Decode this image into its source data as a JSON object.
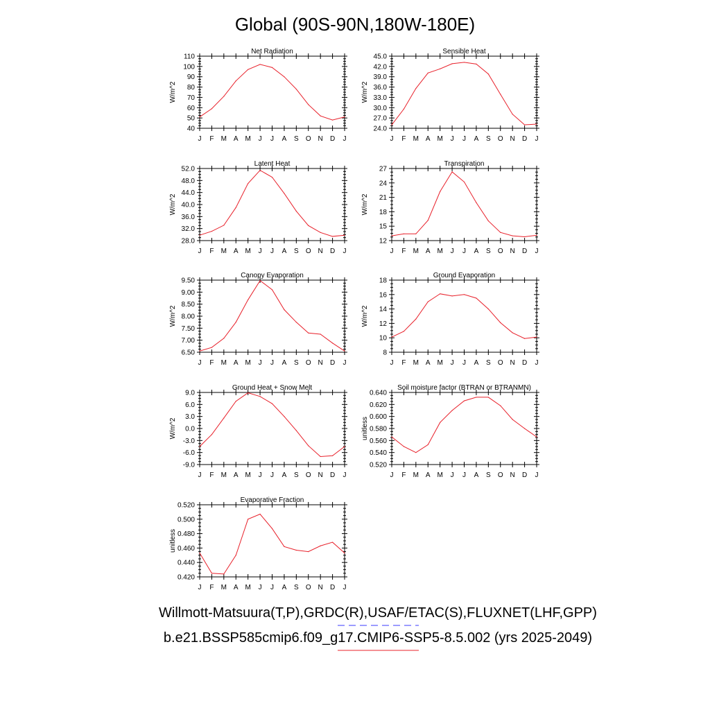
{
  "title": "Global (90S-90N,180W-180E)",
  "months": [
    "J",
    "F",
    "M",
    "A",
    "M",
    "J",
    "J",
    "A",
    "S",
    "O",
    "N",
    "D",
    "J"
  ],
  "colors": {
    "series": "#e8202a",
    "legend_obs_dash": "#3a3aff",
    "legend_model_line": "#e8202a"
  },
  "legend": {
    "obs_label": "Willmott-Matsuura(T,P),GRDC(R),USAF/ETAC(S),FLUXNET(LHF,GPP)",
    "model_label": "b.e21.BSSP585cmip6.f09_g17.CMIP6-SSP5-8.5.002 (yrs 2025-2049)"
  },
  "chart_data": [
    {
      "type": "line",
      "title": "Net Radiation",
      "ylabel": "W/m^2",
      "ylim": [
        40,
        110
      ],
      "yticks": [
        "40",
        "50",
        "60",
        "70",
        "80",
        "90",
        "100",
        "110"
      ],
      "x": [
        "J",
        "F",
        "M",
        "A",
        "M",
        "J",
        "J",
        "A",
        "S",
        "O",
        "N",
        "D",
        "J"
      ],
      "series": [
        {
          "values": [
            51,
            59,
            71,
            86,
            97,
            102,
            99,
            90,
            78,
            63,
            52,
            48,
            51
          ]
        }
      ]
    },
    {
      "type": "line",
      "title": "Sensible Heat",
      "ylabel": "W/m^2",
      "ylim": [
        24,
        45
      ],
      "yticks": [
        "24.0",
        "27.0",
        "30.0",
        "33.0",
        "36.0",
        "39.0",
        "42.0",
        "45.0"
      ],
      "x": [
        "J",
        "F",
        "M",
        "A",
        "M",
        "J",
        "J",
        "A",
        "S",
        "O",
        "N",
        "D",
        "J"
      ],
      "series": [
        {
          "values": [
            25.0,
            29.6,
            35.6,
            40.1,
            41.3,
            42.8,
            43.2,
            42.7,
            39.8,
            33.9,
            28.1,
            25.0,
            25.2
          ]
        }
      ]
    },
    {
      "type": "line",
      "title": "Latent Heat",
      "ylabel": "W/m^2",
      "ylim": [
        28,
        52
      ],
      "yticks": [
        "28.0",
        "32.0",
        "36.0",
        "40.0",
        "44.0",
        "48.0",
        "52.0"
      ],
      "x": [
        "J",
        "F",
        "M",
        "A",
        "M",
        "J",
        "J",
        "A",
        "S",
        "O",
        "N",
        "D",
        "J"
      ],
      "series": [
        {
          "values": [
            29.8,
            31.1,
            33.1,
            39.0,
            47.0,
            51.4,
            49.1,
            43.7,
            37.8,
            33.0,
            30.7,
            29.4,
            29.8
          ]
        }
      ]
    },
    {
      "type": "line",
      "title": "Transpiration",
      "ylabel": "W/m^2",
      "ylim": [
        12,
        27
      ],
      "yticks": [
        "12",
        "15",
        "18",
        "21",
        "24",
        "27"
      ],
      "x": [
        "J",
        "F",
        "M",
        "A",
        "M",
        "J",
        "J",
        "A",
        "S",
        "O",
        "N",
        "D",
        "J"
      ],
      "series": [
        {
          "values": [
            13.0,
            13.4,
            13.4,
            16.2,
            22.2,
            26.3,
            24.2,
            19.9,
            16.1,
            13.7,
            13.0,
            12.8,
            13.1
          ]
        }
      ]
    },
    {
      "type": "line",
      "title": "Canopy Evaporation",
      "ylabel": "W/m^2",
      "ylim": [
        6.5,
        9.5
      ],
      "yticks": [
        "6.50",
        "7.00",
        "7.50",
        "8.00",
        "8.50",
        "9.00",
        "9.50"
      ],
      "x": [
        "J",
        "F",
        "M",
        "A",
        "M",
        "J",
        "J",
        "A",
        "S",
        "O",
        "N",
        "D",
        "J"
      ],
      "series": [
        {
          "values": [
            6.55,
            6.7,
            7.08,
            7.75,
            8.68,
            9.48,
            9.1,
            8.27,
            7.75,
            7.3,
            7.25,
            6.88,
            6.55
          ]
        }
      ]
    },
    {
      "type": "line",
      "title": "Ground Evaporation",
      "ylabel": "W/m^2",
      "ylim": [
        8,
        18
      ],
      "yticks": [
        "8",
        "10",
        "12",
        "14",
        "16",
        "18"
      ],
      "x": [
        "J",
        "F",
        "M",
        "A",
        "M",
        "J",
        "J",
        "A",
        "S",
        "O",
        "N",
        "D",
        "J"
      ],
      "series": [
        {
          "values": [
            10.1,
            10.9,
            12.6,
            15.0,
            16.1,
            15.8,
            16.0,
            15.5,
            14.0,
            12.1,
            10.7,
            9.9,
            10.1
          ]
        }
      ]
    },
    {
      "type": "line",
      "title": "Ground Heat + Snow Melt",
      "ylabel": "W/m^2",
      "ylim": [
        -9,
        9
      ],
      "yticks": [
        "-9.0",
        "-6.0",
        "-3.0",
        "0.0",
        "3.0",
        "6.0",
        "9.0"
      ],
      "x": [
        "J",
        "F",
        "M",
        "A",
        "M",
        "J",
        "J",
        "A",
        "S",
        "O",
        "N",
        "D",
        "J"
      ],
      "series": [
        {
          "values": [
            -4.5,
            -1.5,
            2.6,
            6.8,
            8.9,
            8.0,
            6.2,
            3.0,
            -0.5,
            -4.3,
            -7.0,
            -6.8,
            -4.5
          ]
        }
      ]
    },
    {
      "type": "line",
      "title": "Soil moisture factor (BTRAN or BTRANMN)",
      "ylabel": "unitless",
      "ylim": [
        0.52,
        0.64
      ],
      "yticks": [
        "0.520",
        "0.540",
        "0.560",
        "0.580",
        "0.600",
        "0.620",
        "0.640"
      ],
      "x": [
        "J",
        "F",
        "M",
        "A",
        "M",
        "J",
        "J",
        "A",
        "S",
        "O",
        "N",
        "D",
        "J"
      ],
      "series": [
        {
          "values": [
            0.566,
            0.55,
            0.54,
            0.553,
            0.59,
            0.61,
            0.626,
            0.632,
            0.632,
            0.618,
            0.595,
            0.58,
            0.566
          ]
        }
      ]
    },
    {
      "type": "line",
      "title": "Evaporative Fraction",
      "ylabel": "unitless",
      "ylim": [
        0.42,
        0.52
      ],
      "yticks": [
        "0.420",
        "0.440",
        "0.460",
        "0.480",
        "0.500",
        "0.520"
      ],
      "x": [
        "J",
        "F",
        "M",
        "A",
        "M",
        "J",
        "J",
        "A",
        "S",
        "O",
        "N",
        "D",
        "J"
      ],
      "series": [
        {
          "values": [
            0.453,
            0.425,
            0.424,
            0.45,
            0.5,
            0.507,
            0.487,
            0.462,
            0.457,
            0.455,
            0.463,
            0.468,
            0.453
          ]
        }
      ]
    }
  ]
}
